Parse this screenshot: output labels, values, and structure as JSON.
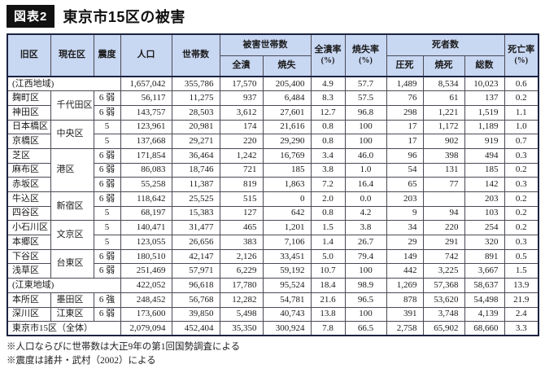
{
  "figure": {
    "badge": "図表2",
    "title": "東京市15区の被害"
  },
  "colors": {
    "header_bg": "#c8d7f2",
    "border_dark": "#1c2240",
    "badge_bg": "#111111"
  },
  "table": {
    "headers": {
      "old_ward": "旧区",
      "current_ward": "現在区",
      "intensity": "震度",
      "population": "人口",
      "households": "世帯数",
      "damaged_households": "被害世帯数",
      "collapsed": "全潰",
      "burned": "焼失",
      "collapse_rate": "全潰率",
      "burn_rate": "焼失率",
      "deaths": "死者数",
      "crushed": "圧死",
      "burned_dead": "焼死",
      "total": "総数",
      "death_rate": "死亡率",
      "pct": "(%)"
    },
    "rows": [
      {
        "type": "summary",
        "label": "(江西地域)",
        "pop": "1,657,042",
        "hh": "355,786",
        "col": "17,570",
        "burn": "205,400",
        "crate": "4.9",
        "brate": "57.7",
        "crush": "1,489",
        "bdead": "8,534",
        "total": "10,023",
        "drate": "0.6"
      },
      {
        "type": "data",
        "thick": true,
        "old": "麹町区",
        "cur": "千代田区",
        "span": 2,
        "int": "6 弱",
        "pop": "56,117",
        "hh": "11,275",
        "col": "937",
        "burn": "6,484",
        "crate": "8.3",
        "brate": "57.5",
        "crush": "76",
        "bdead": "61",
        "total": "137",
        "drate": "0.2"
      },
      {
        "type": "data",
        "old": "神田区",
        "int": "6 弱",
        "pop": "143,757",
        "hh": "28,503",
        "col": "3,612",
        "burn": "27,601",
        "crate": "12.7",
        "brate": "96.8",
        "crush": "298",
        "bdead": "1,221",
        "total": "1,519",
        "drate": "1.1"
      },
      {
        "type": "data",
        "thick": true,
        "old": "日本橋区",
        "cur": "中央区",
        "span": 2,
        "int": "5",
        "pop": "123,961",
        "hh": "20,981",
        "col": "174",
        "burn": "21,616",
        "crate": "0.8",
        "brate": "100",
        "crush": "17",
        "bdead": "1,172",
        "total": "1,189",
        "drate": "1.0"
      },
      {
        "type": "data",
        "old": "京橋区",
        "int": "5",
        "pop": "137,668",
        "hh": "29,271",
        "col": "220",
        "burn": "29,290",
        "crate": "0.8",
        "brate": "100",
        "crush": "17",
        "bdead": "902",
        "total": "919",
        "drate": "0.7"
      },
      {
        "type": "data",
        "thick": true,
        "old": "芝区",
        "cur": "港区",
        "span": 3,
        "int": "6 弱",
        "pop": "171,854",
        "hh": "36,464",
        "col": "1,242",
        "burn": "16,769",
        "crate": "3.4",
        "brate": "46.0",
        "crush": "96",
        "bdead": "398",
        "total": "494",
        "drate": "0.3"
      },
      {
        "type": "data",
        "old": "麻布区",
        "int": "6 弱",
        "pop": "86,083",
        "hh": "18,746",
        "col": "721",
        "burn": "185",
        "crate": "3.8",
        "brate": "1.0",
        "crush": "54",
        "bdead": "131",
        "total": "185",
        "drate": "0.2"
      },
      {
        "type": "data",
        "old": "赤坂区",
        "int": "6 弱",
        "pop": "55,258",
        "hh": "11,387",
        "col": "819",
        "burn": "1,863",
        "crate": "7.2",
        "brate": "16.4",
        "crush": "65",
        "bdead": "77",
        "total": "142",
        "drate": "0.3"
      },
      {
        "type": "data",
        "thick": true,
        "old": "牛込区",
        "cur": "新宿区",
        "span": 2,
        "int": "6 弱",
        "pop": "118,642",
        "hh": "25,525",
        "col": "515",
        "burn": "0",
        "crate": "2.0",
        "brate": "0.0",
        "crush": "203",
        "bdead": "",
        "total": "203",
        "drate": "0.2"
      },
      {
        "type": "data",
        "old": "四谷区",
        "int": "5",
        "pop": "68,197",
        "hh": "15,383",
        "col": "127",
        "burn": "642",
        "crate": "0.8",
        "brate": "4.2",
        "crush": "9",
        "bdead": "94",
        "total": "103",
        "drate": "0.2"
      },
      {
        "type": "data",
        "thick": true,
        "old": "小石川区",
        "cur": "文京区",
        "span": 2,
        "int": "5",
        "pop": "140,471",
        "hh": "31,477",
        "col": "465",
        "burn": "1,201",
        "crate": "1.5",
        "brate": "3.8",
        "crush": "34",
        "bdead": "220",
        "total": "254",
        "drate": "0.2"
      },
      {
        "type": "data",
        "old": "本郷区",
        "int": "5",
        "pop": "123,055",
        "hh": "26,656",
        "col": "383",
        "burn": "7,106",
        "crate": "1.4",
        "brate": "26.7",
        "crush": "29",
        "bdead": "291",
        "total": "320",
        "drate": "0.3"
      },
      {
        "type": "data",
        "thick": true,
        "old": "下谷区",
        "cur": "台東区",
        "span": 2,
        "int": "6 弱",
        "pop": "180,510",
        "hh": "42,147",
        "col": "2,126",
        "burn": "33,451",
        "crate": "5.0",
        "brate": "79.4",
        "crush": "149",
        "bdead": "742",
        "total": "891",
        "drate": "0.5"
      },
      {
        "type": "data",
        "old": "浅草区",
        "int": "6 弱",
        "pop": "251,469",
        "hh": "57,971",
        "col": "6,229",
        "burn": "59,192",
        "crate": "10.7",
        "brate": "100",
        "crush": "442",
        "bdead": "3,225",
        "total": "3,667",
        "drate": "1.5"
      },
      {
        "type": "summary",
        "thick": true,
        "label": "(江東地域)",
        "pop": "422,052",
        "hh": "96,618",
        "col": "17,780",
        "burn": "95,524",
        "crate": "18.4",
        "brate": "98.9",
        "crush": "1,269",
        "bdead": "57,368",
        "total": "58,637",
        "drate": "13.9"
      },
      {
        "type": "data",
        "thick": true,
        "old": "本所区",
        "cur": "墨田区",
        "span": 1,
        "int": "6 強",
        "pop": "248,452",
        "hh": "56,768",
        "col": "12,282",
        "burn": "54,781",
        "crate": "21.6",
        "brate": "96.5",
        "crush": "878",
        "bdead": "53,620",
        "total": "54,498",
        "drate": "21.9"
      },
      {
        "type": "data",
        "thick": true,
        "old": "深川区",
        "cur": "江東区",
        "span": 1,
        "int": "6 弱",
        "pop": "173,600",
        "hh": "39,850",
        "col": "5,498",
        "burn": "40,743",
        "crate": "13.8",
        "brate": "100",
        "crush": "391",
        "bdead": "3,748",
        "total": "4,139",
        "drate": "2.4"
      },
      {
        "type": "total",
        "thick": true,
        "label": "東京市15区（全体）",
        "pop": "2,079,094",
        "hh": "452,404",
        "col": "35,350",
        "burn": "300,924",
        "crate": "7.8",
        "brate": "66.5",
        "crush": "2,758",
        "bdead": "65,902",
        "total": "68,660",
        "drate": "3.3"
      }
    ]
  },
  "notes": [
    "※人口ならびに世帯数は大正9年の第1回国勢調査による",
    "※震度は諸井・武村（2002）による"
  ]
}
